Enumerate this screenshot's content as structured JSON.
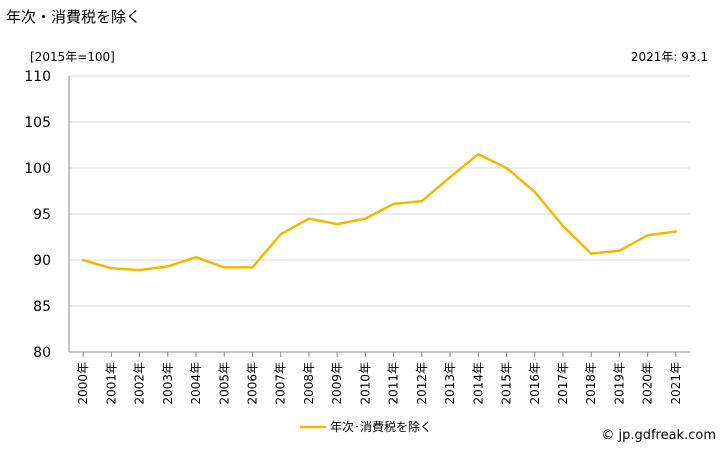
{
  "header": {
    "title": "年次・消費税を除く",
    "unit": "[2015年=100]",
    "latest": "2021年: 93.1"
  },
  "footer": {
    "source": "© jp.gdfreak.com"
  },
  "colors": {
    "line": "#F5B800",
    "grid": "#d9d9d9",
    "axis": "#888888"
  },
  "chart_data": {
    "type": "line",
    "title": "年次・消費税を除く",
    "xlabel": "",
    "ylabel": "[2015年=100]",
    "ylim": [
      80,
      110
    ],
    "yticks": [
      80,
      85,
      90,
      95,
      100,
      105,
      110
    ],
    "grid": true,
    "legend_position": "bottom",
    "categories": [
      "2000年",
      "2001年",
      "2002年",
      "2003年",
      "2004年",
      "2005年",
      "2006年",
      "2007年",
      "2008年",
      "2009年",
      "2010年",
      "2011年",
      "2012年",
      "2013年",
      "2014年",
      "2015年",
      "2016年",
      "2017年",
      "2018年",
      "2019年",
      "2020年",
      "2021年"
    ],
    "series": [
      {
        "name": "年次･消費税を除く",
        "values": [
          90.0,
          89.1,
          88.9,
          89.3,
          90.3,
          89.2,
          89.2,
          92.8,
          94.5,
          93.9,
          94.5,
          96.1,
          96.4,
          99.0,
          101.5,
          100.0,
          97.4,
          93.7,
          90.7,
          91.0,
          92.7,
          93.1
        ]
      }
    ]
  }
}
